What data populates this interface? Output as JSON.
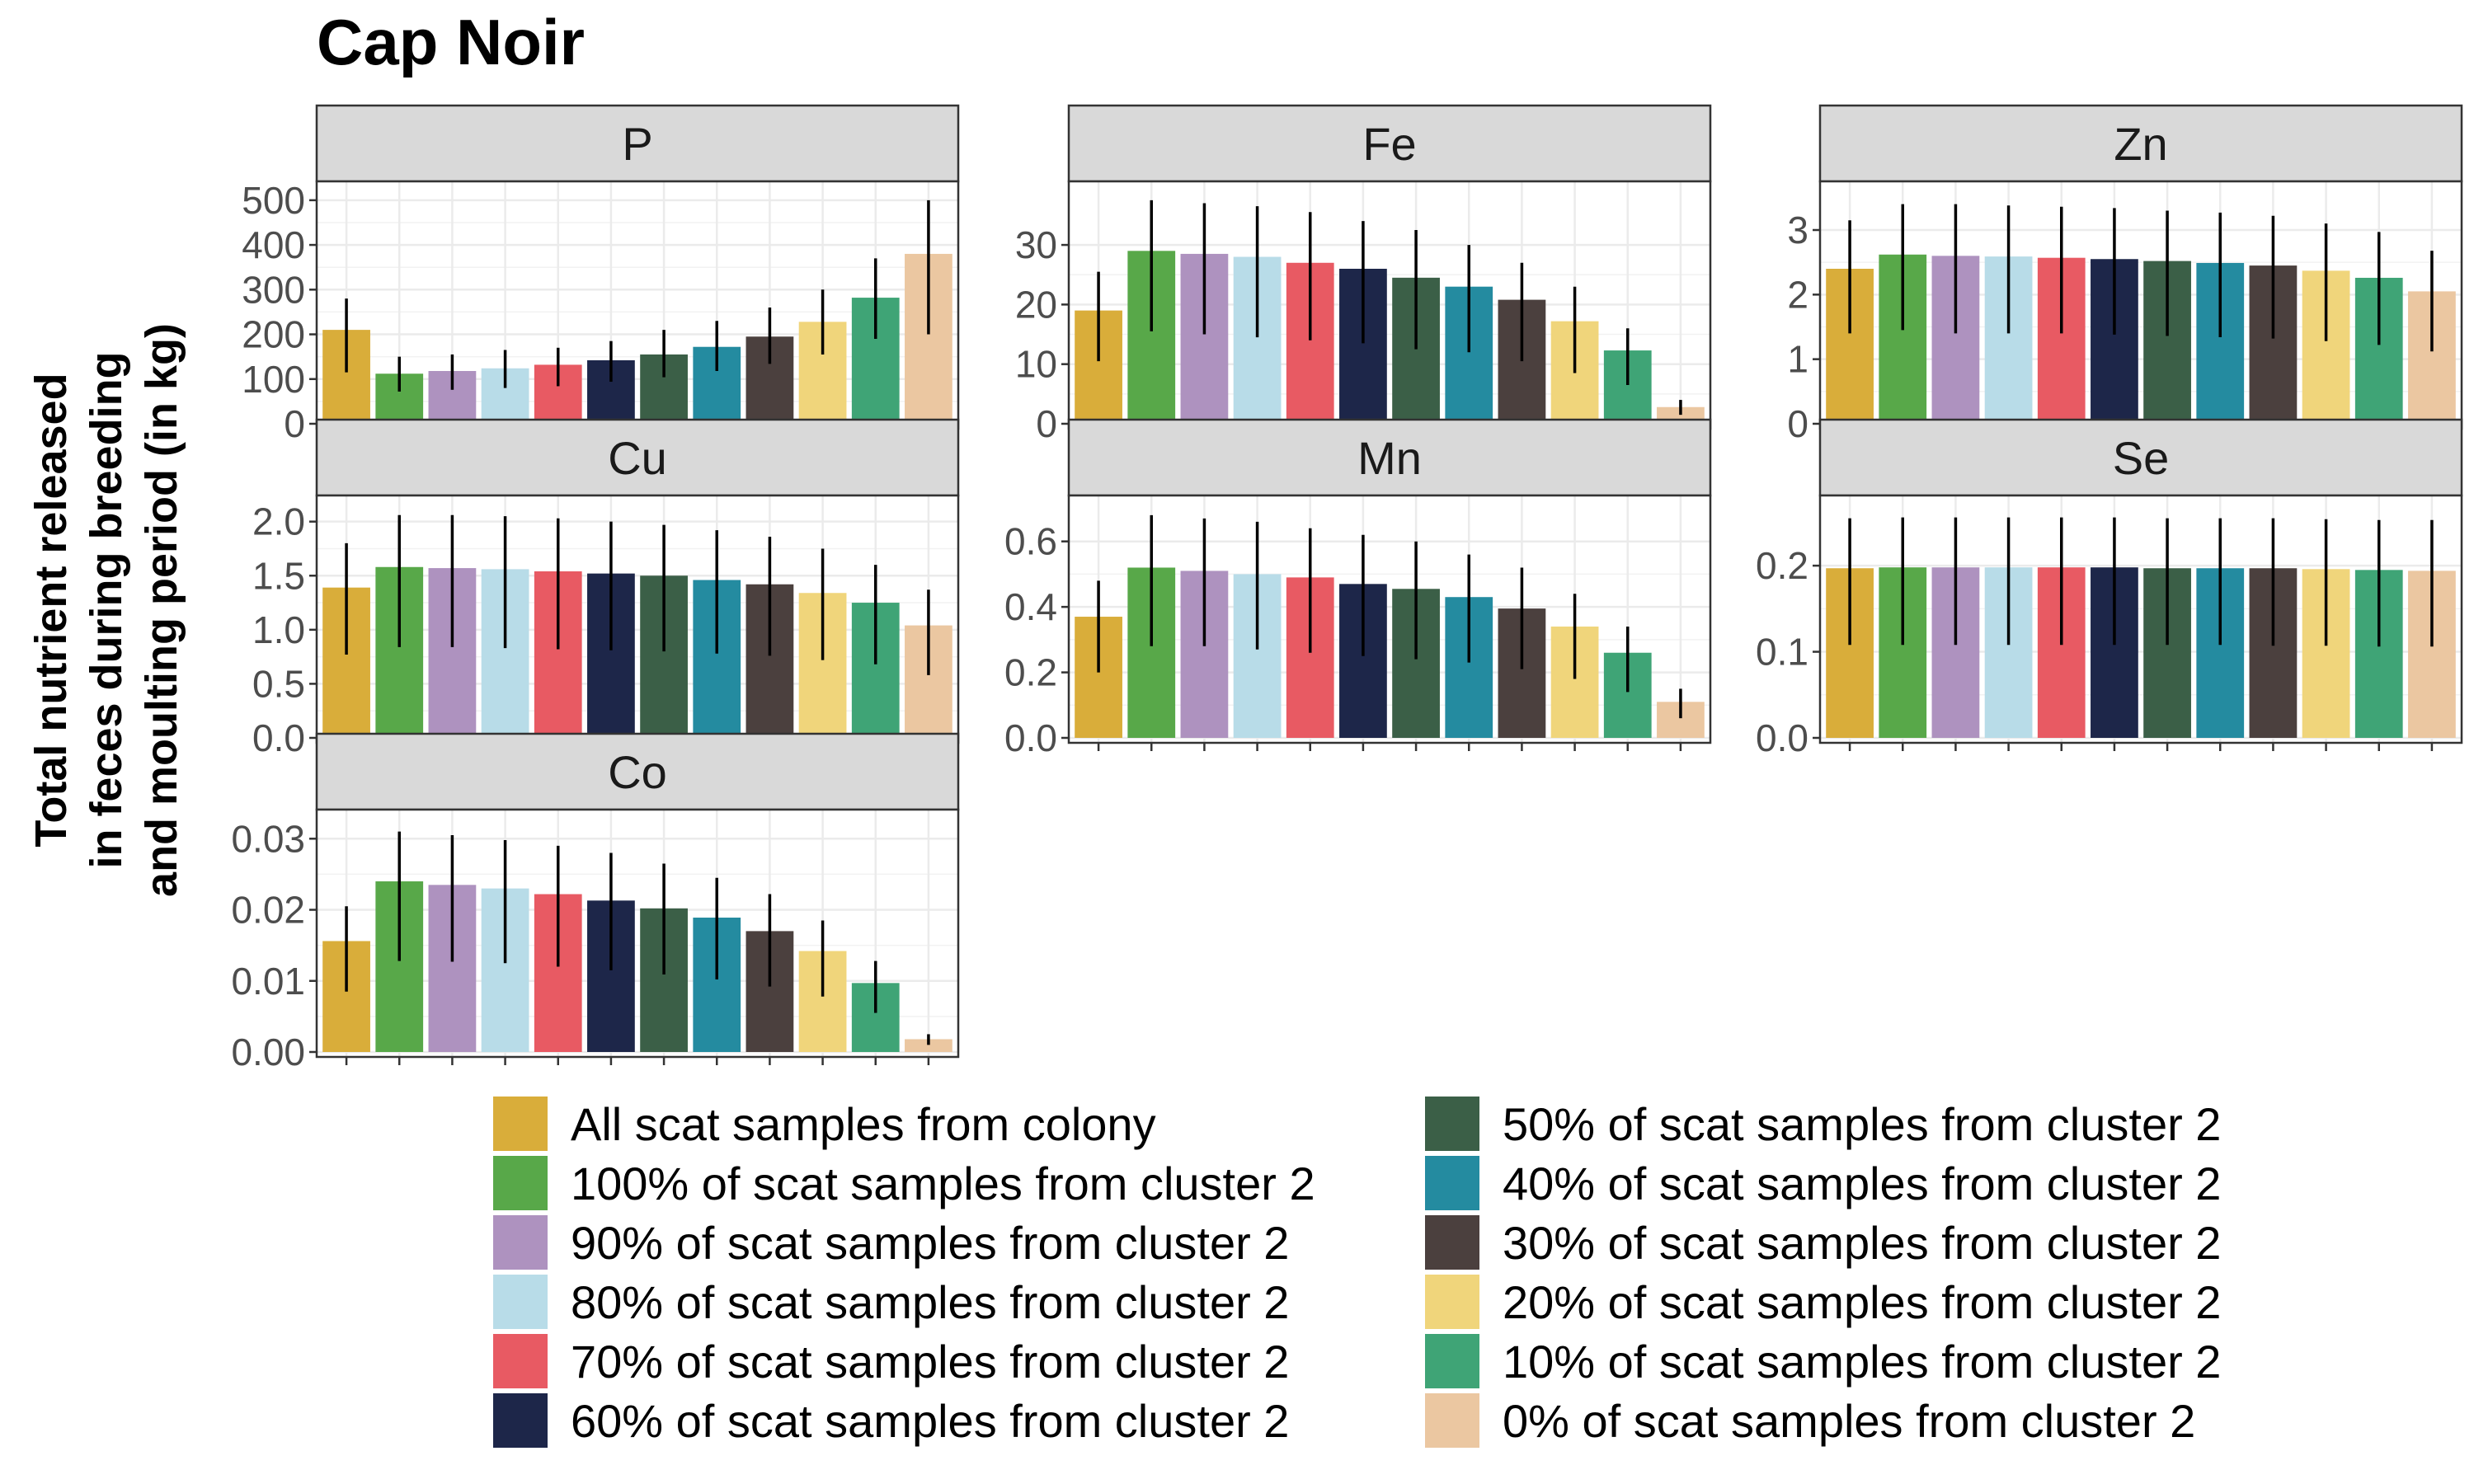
{
  "chart_data": {
    "type": "bar",
    "title": "Cap Noir",
    "ylabel_lines": [
      "Total nutrient released",
      "in feces during breeding",
      "and moulting period (in kg)"
    ],
    "categories": [
      "All scat samples from colony",
      "100% of scat samples from cluster 2",
      "90% of scat samples from cluster 2",
      "80% of scat samples from cluster 2",
      "70% of scat samples from cluster 2",
      "60% of scat samples from cluster 2",
      "50% of scat samples from cluster 2",
      "40% of scat samples from cluster 2",
      "30% of scat samples from cluster 2",
      "20% of scat samples from cluster 2",
      "10% of scat samples from cluster 2",
      "0% of scat samples from cluster 2"
    ],
    "colors": [
      "#d9ad3a",
      "#58a849",
      "#ae92bf",
      "#b8dce8",
      "#e85a63",
      "#1d2649",
      "#3b5f47",
      "#248ba0",
      "#4b403e",
      "#f0d57b",
      "#3fa476",
      "#ebc7a1"
    ],
    "legend_position": "bottom",
    "grid": true,
    "panels": [
      {
        "name": "P",
        "ylim": [
          0,
          520
        ],
        "ticks": [
          0,
          100,
          200,
          300,
          400,
          500
        ],
        "tick_labels": [
          "0",
          "100",
          "200",
          "300",
          "400",
          "500"
        ],
        "values": [
          210,
          112,
          118,
          124,
          132,
          142,
          155,
          172,
          195,
          228,
          282,
          380
        ],
        "lower": [
          115,
          72,
          76,
          80,
          84,
          94,
          104,
          118,
          134,
          155,
          190,
          200
        ],
        "upper": [
          280,
          150,
          155,
          165,
          170,
          185,
          210,
          230,
          260,
          300,
          370,
          500
        ]
      },
      {
        "name": "Fe",
        "ylim": [
          0,
          39
        ],
        "ticks": [
          0,
          10,
          20,
          30
        ],
        "tick_labels": [
          "0",
          "10",
          "20",
          "30"
        ],
        "values": [
          19,
          29,
          28.5,
          28,
          27,
          26,
          24.5,
          23,
          20.8,
          17.2,
          12.3,
          2.8
        ],
        "lower": [
          10.5,
          15.5,
          15,
          14.5,
          14,
          13.5,
          12.5,
          12,
          10.5,
          8.5,
          6.5,
          1.5
        ],
        "upper": [
          25.5,
          37.5,
          37,
          36.5,
          35.5,
          34,
          32.5,
          30,
          27,
          23,
          16,
          4
        ]
      },
      {
        "name": "Zn",
        "ylim": [
          0,
          3.6
        ],
        "ticks": [
          0,
          1,
          2,
          3
        ],
        "tick_labels": [
          "0",
          "1",
          "2",
          "3"
        ],
        "values": [
          2.4,
          2.62,
          2.6,
          2.59,
          2.57,
          2.55,
          2.52,
          2.49,
          2.45,
          2.37,
          2.26,
          2.05
        ],
        "lower": [
          1.4,
          1.45,
          1.4,
          1.4,
          1.4,
          1.38,
          1.36,
          1.34,
          1.32,
          1.28,
          1.22,
          1.12
        ],
        "upper": [
          3.15,
          3.4,
          3.4,
          3.38,
          3.36,
          3.34,
          3.3,
          3.27,
          3.22,
          3.1,
          2.97,
          2.68
        ]
      },
      {
        "name": "Cu",
        "ylim": [
          0,
          2.15
        ],
        "ticks": [
          0,
          0.5,
          1.0,
          1.5,
          2.0
        ],
        "tick_labels": [
          "0.0",
          "0.5",
          "1.0",
          "1.5",
          "2.0"
        ],
        "values": [
          1.39,
          1.58,
          1.57,
          1.56,
          1.54,
          1.52,
          1.5,
          1.46,
          1.42,
          1.34,
          1.25,
          1.04
        ],
        "lower": [
          0.77,
          0.84,
          0.84,
          0.83,
          0.82,
          0.81,
          0.8,
          0.78,
          0.76,
          0.72,
          0.68,
          0.58
        ],
        "upper": [
          1.8,
          2.06,
          2.06,
          2.05,
          2.03,
          2.0,
          1.97,
          1.92,
          1.86,
          1.75,
          1.6,
          1.37
        ]
      },
      {
        "name": "Mn",
        "ylim": [
          0,
          0.71
        ],
        "ticks": [
          0,
          0.2,
          0.4,
          0.6
        ],
        "tick_labels": [
          "0.0",
          "0.2",
          "0.4",
          "0.6"
        ],
        "values": [
          0.37,
          0.52,
          0.51,
          0.5,
          0.49,
          0.47,
          0.455,
          0.43,
          0.395,
          0.34,
          0.26,
          0.11
        ],
        "lower": [
          0.2,
          0.28,
          0.28,
          0.27,
          0.26,
          0.25,
          0.24,
          0.23,
          0.21,
          0.18,
          0.14,
          0.06
        ],
        "upper": [
          0.48,
          0.68,
          0.67,
          0.66,
          0.64,
          0.62,
          0.6,
          0.56,
          0.52,
          0.44,
          0.34,
          0.15
        ]
      },
      {
        "name": "Se",
        "ylim": [
          0,
          0.27
        ],
        "ticks": [
          0,
          0.1,
          0.2
        ],
        "tick_labels": [
          "0.0",
          "0.1",
          "0.2"
        ],
        "values": [
          0.197,
          0.198,
          0.198,
          0.198,
          0.198,
          0.198,
          0.197,
          0.197,
          0.197,
          0.196,
          0.195,
          0.194
        ],
        "lower": [
          0.108,
          0.108,
          0.108,
          0.108,
          0.108,
          0.108,
          0.108,
          0.108,
          0.107,
          0.107,
          0.106,
          0.106
        ],
        "upper": [
          0.255,
          0.256,
          0.256,
          0.256,
          0.256,
          0.256,
          0.255,
          0.255,
          0.255,
          0.254,
          0.253,
          0.253
        ]
      },
      {
        "name": "Co",
        "ylim": [
          0,
          0.0327
        ],
        "ticks": [
          0,
          0.01,
          0.02,
          0.03
        ],
        "tick_labels": [
          "0.00",
          "0.01",
          "0.02",
          "0.03"
        ],
        "values": [
          0.0156,
          0.024,
          0.0235,
          0.023,
          0.0222,
          0.0213,
          0.0202,
          0.0189,
          0.017,
          0.0142,
          0.0097,
          0.0018
        ],
        "lower": [
          0.0085,
          0.0128,
          0.0127,
          0.0125,
          0.012,
          0.0115,
          0.0109,
          0.0102,
          0.0092,
          0.0078,
          0.0055,
          0.001
        ],
        "upper": [
          0.0205,
          0.031,
          0.0305,
          0.0298,
          0.029,
          0.028,
          0.0265,
          0.0245,
          0.0222,
          0.0185,
          0.0128,
          0.0025
        ]
      }
    ]
  }
}
